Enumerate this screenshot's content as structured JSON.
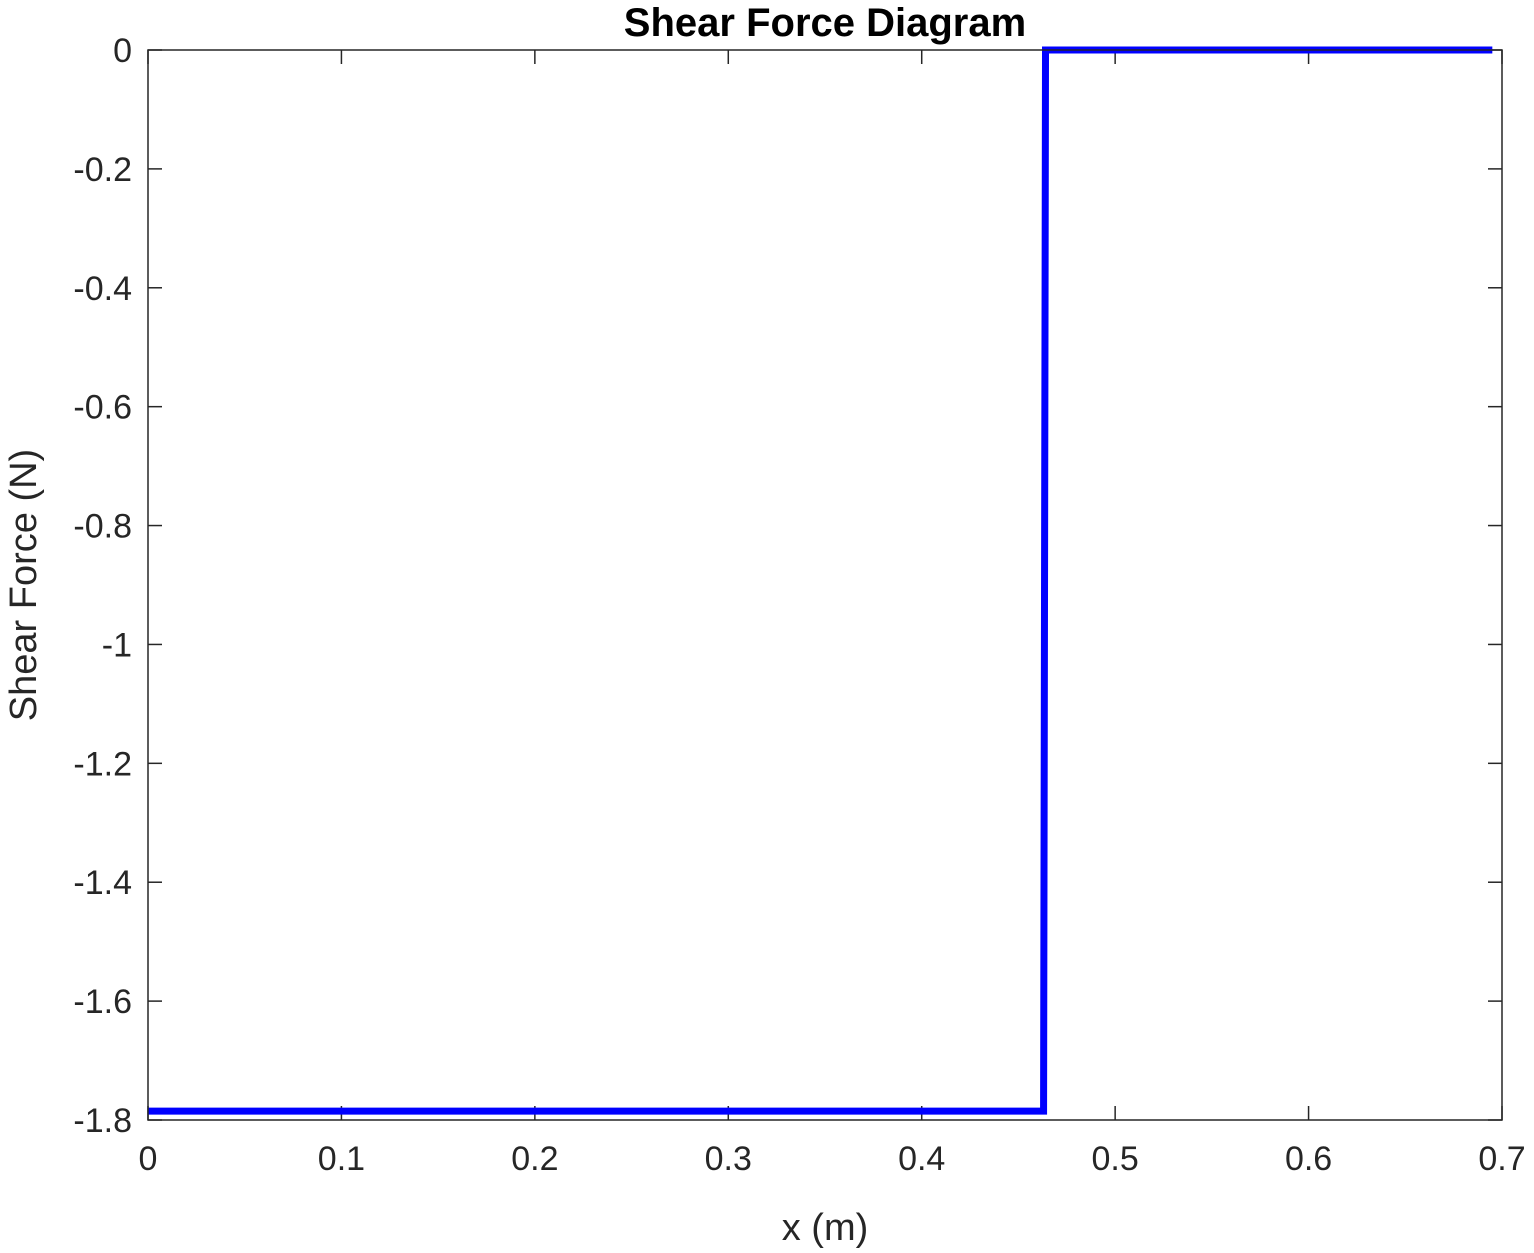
{
  "chart_data": {
    "type": "line",
    "title": "Shear Force Diagram",
    "xlabel": "x (m)",
    "ylabel": "Shear Force (N)",
    "xlim": [
      0,
      0.7
    ],
    "ylim": [
      -1.8,
      0
    ],
    "xticks": [
      0,
      0.1,
      0.2,
      0.3,
      0.4,
      0.5,
      0.6,
      0.7
    ],
    "xtick_labels": [
      "0",
      "0.1",
      "0.2",
      "0.3",
      "0.4",
      "0.5",
      "0.6",
      "0.7"
    ],
    "yticks": [
      0,
      -0.2,
      -0.4,
      -0.6,
      -0.8,
      -1,
      -1.2,
      -1.4,
      -1.6,
      -1.8
    ],
    "ytick_labels": [
      "0",
      "-0.2",
      "-0.4",
      "-0.6",
      "-0.8",
      "-1",
      "-1.2",
      "-1.4",
      "-1.6",
      "-1.8"
    ],
    "grid": false,
    "box": true,
    "series": [
      {
        "color": "#0000ff",
        "x": [
          0,
          0.463,
          0.464,
          0.695
        ],
        "y": [
          -1.785,
          -1.785,
          0,
          0
        ]
      }
    ]
  }
}
